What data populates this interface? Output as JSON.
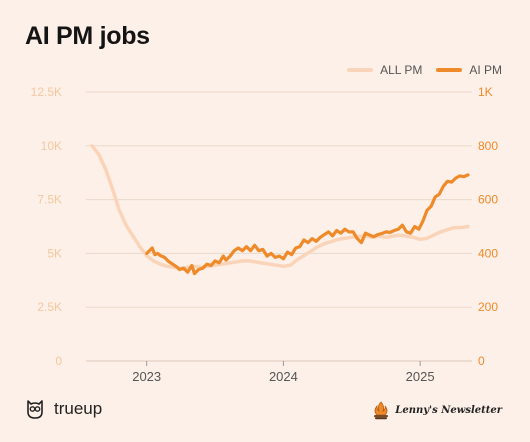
{
  "title": "AI PM jobs",
  "colors": {
    "all_pm": "#fad4b8",
    "ai_pm": "#ee8a2a",
    "grid": "#ead9cc",
    "left_axis": "#f4c7a0",
    "right_axis": "#ee8a2a",
    "x_axis": "#555555"
  },
  "footer": {
    "brand_left": "trueup",
    "brand_left_icon": "owl-icon",
    "brand_right": "Lenny's Newsletter",
    "brand_right_icon": "campfire-icon"
  },
  "chart_data": {
    "type": "line",
    "title": "AI PM jobs",
    "legend": {
      "placement": "top-right",
      "entries": [
        "ALL PM",
        "AI PM"
      ]
    },
    "grid": true,
    "x_ticks": [
      "2023",
      "2024",
      "2025"
    ],
    "y_left": {
      "ylim": [
        0,
        12500
      ],
      "tick_labels": [
        "0",
        "2.5K",
        "5K",
        "7.5K",
        "10K",
        "12.5K"
      ]
    },
    "y_right": {
      "ylim": [
        0,
        1000
      ],
      "tick_labels": [
        "0",
        "200",
        "400",
        "600",
        "800",
        "1K"
      ]
    },
    "series": [
      {
        "name": "ALL PM",
        "axis": "left",
        "points": [
          [
            2022.6,
            10000
          ],
          [
            2022.65,
            9600
          ],
          [
            2022.7,
            8900
          ],
          [
            2022.75,
            8000
          ],
          [
            2022.8,
            7000
          ],
          [
            2022.85,
            6300
          ],
          [
            2022.9,
            5800
          ],
          [
            2022.95,
            5300
          ],
          [
            2023.0,
            4900
          ],
          [
            2023.05,
            4650
          ],
          [
            2023.1,
            4500
          ],
          [
            2023.15,
            4400
          ],
          [
            2023.2,
            4350
          ],
          [
            2023.25,
            4300
          ],
          [
            2023.3,
            4350
          ],
          [
            2023.35,
            4400
          ],
          [
            2023.4,
            4350
          ],
          [
            2023.45,
            4400
          ],
          [
            2023.5,
            4450
          ],
          [
            2023.55,
            4500
          ],
          [
            2023.6,
            4550
          ],
          [
            2023.65,
            4600
          ],
          [
            2023.7,
            4650
          ],
          [
            2023.75,
            4650
          ],
          [
            2023.8,
            4600
          ],
          [
            2023.85,
            4550
          ],
          [
            2023.9,
            4500
          ],
          [
            2023.95,
            4450
          ],
          [
            2024.0,
            4400
          ],
          [
            2024.05,
            4450
          ],
          [
            2024.1,
            4700
          ],
          [
            2024.15,
            4900
          ],
          [
            2024.2,
            5100
          ],
          [
            2024.25,
            5300
          ],
          [
            2024.3,
            5450
          ],
          [
            2024.35,
            5550
          ],
          [
            2024.4,
            5650
          ],
          [
            2024.45,
            5700
          ],
          [
            2024.5,
            5750
          ],
          [
            2024.55,
            5800
          ],
          [
            2024.6,
            5800
          ],
          [
            2024.65,
            5750
          ],
          [
            2024.7,
            5800
          ],
          [
            2024.75,
            5750
          ],
          [
            2024.8,
            5800
          ],
          [
            2024.85,
            5850
          ],
          [
            2024.9,
            5800
          ],
          [
            2024.95,
            5750
          ],
          [
            2025.0,
            5650
          ],
          [
            2025.05,
            5700
          ],
          [
            2025.1,
            5850
          ],
          [
            2025.15,
            6000
          ],
          [
            2025.2,
            6100
          ],
          [
            2025.25,
            6200
          ],
          [
            2025.3,
            6200
          ],
          [
            2025.35,
            6250
          ]
        ]
      },
      {
        "name": "AI PM",
        "axis": "right",
        "points": [
          [
            2023.0,
            400
          ],
          [
            2023.02,
            410
          ],
          [
            2023.04,
            420
          ],
          [
            2023.06,
            395
          ],
          [
            2023.08,
            400
          ],
          [
            2023.1,
            392
          ],
          [
            2023.13,
            385
          ],
          [
            2023.16,
            370
          ],
          [
            2023.19,
            360
          ],
          [
            2023.22,
            350
          ],
          [
            2023.24,
            340
          ],
          [
            2023.27,
            345
          ],
          [
            2023.3,
            330
          ],
          [
            2023.33,
            355
          ],
          [
            2023.35,
            325
          ],
          [
            2023.38,
            340
          ],
          [
            2023.41,
            345
          ],
          [
            2023.44,
            360
          ],
          [
            2023.47,
            355
          ],
          [
            2023.5,
            372
          ],
          [
            2023.53,
            365
          ],
          [
            2023.56,
            390
          ],
          [
            2023.58,
            375
          ],
          [
            2023.61,
            390
          ],
          [
            2023.64,
            410
          ],
          [
            2023.67,
            420
          ],
          [
            2023.7,
            410
          ],
          [
            2023.73,
            425
          ],
          [
            2023.76,
            410
          ],
          [
            2023.79,
            430
          ],
          [
            2023.82,
            410
          ],
          [
            2023.85,
            415
          ],
          [
            2023.88,
            390
          ],
          [
            2023.91,
            400
          ],
          [
            2023.94,
            385
          ],
          [
            2023.97,
            390
          ],
          [
            2024.0,
            380
          ],
          [
            2024.03,
            405
          ],
          [
            2024.06,
            395
          ],
          [
            2024.09,
            420
          ],
          [
            2024.12,
            425
          ],
          [
            2024.15,
            450
          ],
          [
            2024.18,
            440
          ],
          [
            2024.21,
            455
          ],
          [
            2024.24,
            445
          ],
          [
            2024.27,
            460
          ],
          [
            2024.3,
            470
          ],
          [
            2024.33,
            480
          ],
          [
            2024.36,
            465
          ],
          [
            2024.39,
            485
          ],
          [
            2024.42,
            475
          ],
          [
            2024.45,
            490
          ],
          [
            2024.48,
            480
          ],
          [
            2024.51,
            480
          ],
          [
            2024.54,
            455
          ],
          [
            2024.57,
            440
          ],
          [
            2024.6,
            475
          ],
          [
            2024.63,
            468
          ],
          [
            2024.66,
            462
          ],
          [
            2024.69,
            470
          ],
          [
            2024.72,
            474
          ],
          [
            2024.75,
            480
          ],
          [
            2024.78,
            478
          ],
          [
            2024.81,
            485
          ],
          [
            2024.84,
            490
          ],
          [
            2024.87,
            505
          ],
          [
            2024.9,
            480
          ],
          [
            2024.93,
            475
          ],
          [
            2024.96,
            500
          ],
          [
            2024.99,
            490
          ],
          [
            2025.02,
            520
          ],
          [
            2025.05,
            560
          ],
          [
            2025.08,
            575
          ],
          [
            2025.11,
            610
          ],
          [
            2025.14,
            620
          ],
          [
            2025.17,
            650
          ],
          [
            2025.2,
            668
          ],
          [
            2025.23,
            665
          ],
          [
            2025.26,
            680
          ],
          [
            2025.29,
            688
          ],
          [
            2025.32,
            685
          ],
          [
            2025.35,
            692
          ]
        ]
      }
    ]
  }
}
